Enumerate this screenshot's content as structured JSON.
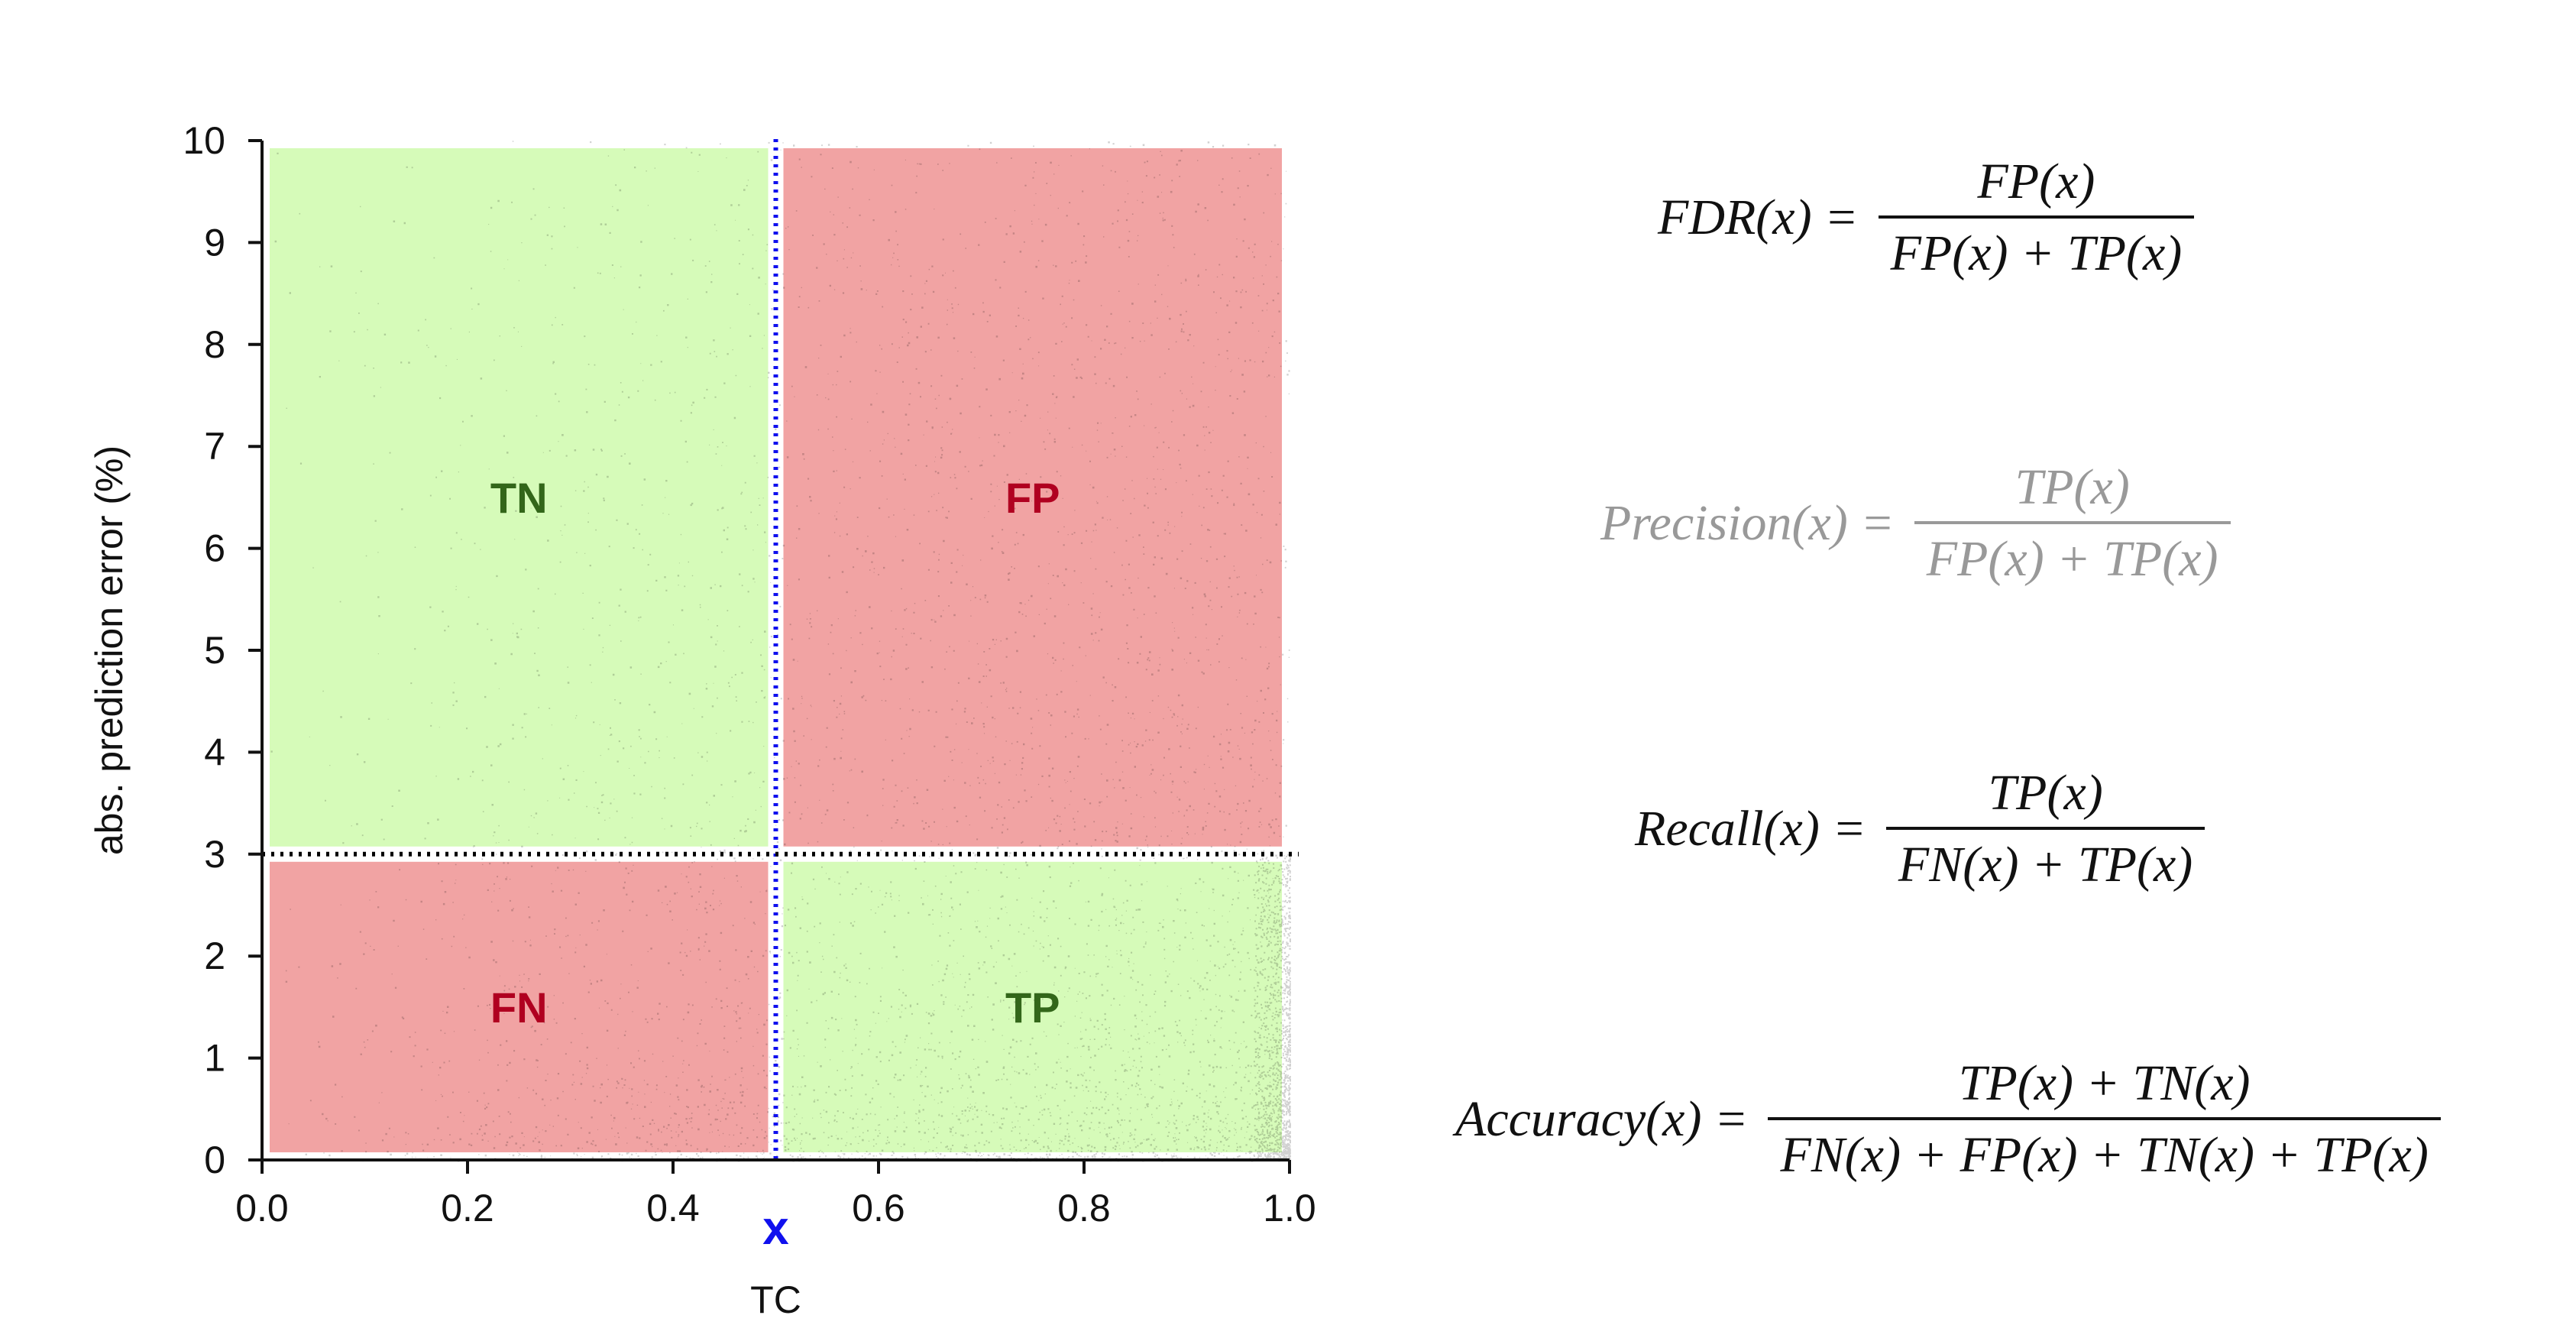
{
  "chart_data": {
    "type": "scatter",
    "xlabel": "TC",
    "ylabel": "abs. prediction error (%)",
    "xlim": [
      0.0,
      1.0
    ],
    "ylim": [
      0,
      10
    ],
    "xticks": [
      "0.0",
      "0.2",
      "0.4",
      "0.6",
      "0.8",
      "1.0"
    ],
    "yticks": [
      "0",
      "1",
      "2",
      "3",
      "4",
      "5",
      "6",
      "7",
      "8",
      "9",
      "10"
    ],
    "threshold_x": 0.5,
    "threshold_x_marker": "x",
    "threshold_y": 3,
    "regions": [
      {
        "label": "TN",
        "x": [
          0.0,
          0.5
        ],
        "y": [
          3,
          10
        ],
        "color": "#d6fbb9",
        "text_color": "#33661a"
      },
      {
        "label": "FP",
        "x": [
          0.5,
          1.0
        ],
        "y": [
          3,
          10
        ],
        "color": "#f1a3a3",
        "text_color": "#b00020"
      },
      {
        "label": "FN",
        "x": [
          0.0,
          0.5
        ],
        "y": [
          0,
          3
        ],
        "color": "#f1a3a3",
        "text_color": "#b00020"
      },
      {
        "label": "TP",
        "x": [
          0.5,
          1.0
        ],
        "y": [
          0,
          3
        ],
        "color": "#d6fbb9",
        "text_color": "#33661a"
      }
    ],
    "colors": {
      "threshold_x_line": "#1010ee",
      "threshold_y_line": "#000000",
      "points": "#000000"
    },
    "grid": false
  },
  "formulas": [
    {
      "lhs": "FDR(x) =",
      "num": "FP(x)",
      "den": "FP(x) + TP(x)",
      "muted": false
    },
    {
      "lhs": "Precision(x) =",
      "num": "TP(x)",
      "den": "FP(x) + TP(x)",
      "muted": true
    },
    {
      "lhs": "Recall(x) =",
      "num": "TP(x)",
      "den": "FN(x) + TP(x)",
      "muted": false
    },
    {
      "lhs": "Accuracy(x) =",
      "num": "TP(x) + TN(x)",
      "den": "FN(x) + FP(x) + TN(x) + TP(x)",
      "muted": false
    }
  ]
}
